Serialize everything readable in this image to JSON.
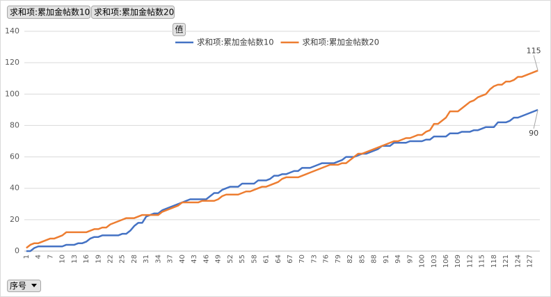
{
  "chart_data": {
    "type": "line",
    "filters": [
      "求和项:累加金帖数10",
      "求和项:累加金帖数20"
    ],
    "values_button": "值",
    "axis_field": "序号",
    "categories": [
      "1",
      null,
      null,
      "4",
      null,
      null,
      "7",
      null,
      null,
      "10",
      null,
      null,
      "13",
      null,
      null,
      "16",
      null,
      null,
      "19",
      null,
      null,
      "22",
      null,
      null,
      "25",
      null,
      null,
      "28",
      null,
      null,
      "31",
      null,
      null,
      "34",
      null,
      null,
      "37",
      null,
      null,
      "40",
      null,
      null,
      "43",
      null,
      null,
      "46",
      null,
      null,
      "49",
      null,
      null,
      "52",
      null,
      null,
      "55",
      null,
      null,
      "58",
      null,
      null,
      "61",
      null,
      null,
      "64",
      null,
      null,
      "67",
      null,
      null,
      "70",
      null,
      null,
      "73",
      null,
      null,
      "76",
      null,
      null,
      "79",
      null,
      null,
      "82",
      null,
      null,
      "85",
      null,
      null,
      "88",
      null,
      null,
      "91",
      null,
      null,
      "94",
      null,
      null,
      "97",
      null,
      null,
      "100",
      null,
      null,
      "103",
      null,
      null,
      "106",
      null,
      null,
      "109",
      null,
      null,
      "112",
      null,
      null,
      "115",
      null,
      null,
      "118",
      null,
      null,
      "121",
      null,
      null,
      "124",
      null,
      null,
      "127",
      null,
      null
    ],
    "series": [
      {
        "name": "求和项:累加金帖数10",
        "color": "#4472c4",
        "values": [
          0,
          0,
          2,
          3,
          3,
          3,
          3,
          3,
          3,
          3,
          4,
          4,
          4,
          5,
          5,
          6,
          8,
          9,
          9,
          10,
          10,
          10,
          10,
          10,
          11,
          11,
          13,
          16,
          18,
          18,
          22,
          23,
          24,
          24,
          26,
          27,
          28,
          29,
          30,
          31,
          32,
          33,
          33,
          33,
          33,
          33,
          35,
          37,
          37,
          39,
          40,
          41,
          41,
          41,
          43,
          43,
          43,
          43,
          45,
          45,
          45,
          46,
          48,
          48,
          49,
          49,
          50,
          51,
          51,
          53,
          53,
          53,
          54,
          55,
          56,
          56,
          56,
          56,
          57,
          58,
          60,
          60,
          60,
          61,
          62,
          62,
          63,
          64,
          65,
          67,
          67,
          67,
          69,
          69,
          69,
          69,
          70,
          70,
          70,
          70,
          71,
          71,
          73,
          73,
          73,
          73,
          75,
          75,
          75,
          76,
          76,
          76,
          77,
          77,
          78,
          79,
          79,
          79,
          82,
          82,
          82,
          83,
          85,
          85,
          86,
          87,
          88,
          89,
          90
        ]
      },
      {
        "name": "求和项:累加金帖数20",
        "color": "#ed7d31",
        "values": [
          2,
          4,
          5,
          5,
          6,
          7,
          8,
          8,
          9,
          10,
          12,
          12,
          12,
          12,
          12,
          12,
          13,
          14,
          14,
          15,
          15,
          17,
          18,
          19,
          20,
          21,
          21,
          21,
          22,
          23,
          23,
          23,
          23,
          23,
          25,
          26,
          27,
          28,
          29,
          31,
          31,
          31,
          31,
          31,
          32,
          32,
          32,
          32,
          33,
          35,
          36,
          36,
          36,
          36,
          37,
          38,
          38,
          39,
          40,
          41,
          41,
          42,
          43,
          44,
          46,
          47,
          47,
          47,
          47,
          48,
          49,
          50,
          51,
          52,
          53,
          54,
          55,
          55,
          55,
          56,
          56,
          58,
          60,
          62,
          62,
          63,
          64,
          65,
          66,
          67,
          68,
          69,
          70,
          70,
          71,
          72,
          72,
          73,
          74,
          74,
          76,
          77,
          81,
          81,
          83,
          85,
          89,
          89,
          89,
          91,
          93,
          95,
          96,
          98,
          99,
          100,
          103,
          105,
          106,
          106,
          108,
          108,
          109,
          111,
          111,
          112,
          113,
          114,
          115
        ]
      }
    ],
    "ylim": [
      0,
      140
    ],
    "yticks": [
      0,
      20,
      40,
      60,
      80,
      100,
      120,
      140
    ],
    "grid": true,
    "legend": "top"
  }
}
